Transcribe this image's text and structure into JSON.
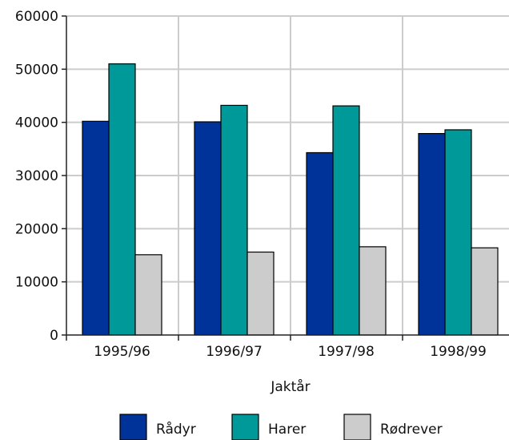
{
  "chart_data": {
    "type": "bar",
    "xlabel": "Jaktår",
    "ylabel": "",
    "ylim": [
      0,
      60000
    ],
    "yticks": [
      0,
      10000,
      20000,
      30000,
      40000,
      50000,
      60000
    ],
    "grid": true,
    "legend_position": "bottom",
    "categories": [
      "1995/96",
      "1996/97",
      "1997/98",
      "1998/99"
    ],
    "series": [
      {
        "name": "Rådyr",
        "color": "#003399",
        "values": [
          40200,
          40100,
          34300,
          37900
        ]
      },
      {
        "name": "Harer",
        "color": "#009999",
        "values": [
          51000,
          43200,
          43100,
          38600
        ]
      },
      {
        "name": "Rødrever",
        "color": "#cccccc",
        "values": [
          15100,
          15600,
          16600,
          16400
        ]
      }
    ]
  }
}
